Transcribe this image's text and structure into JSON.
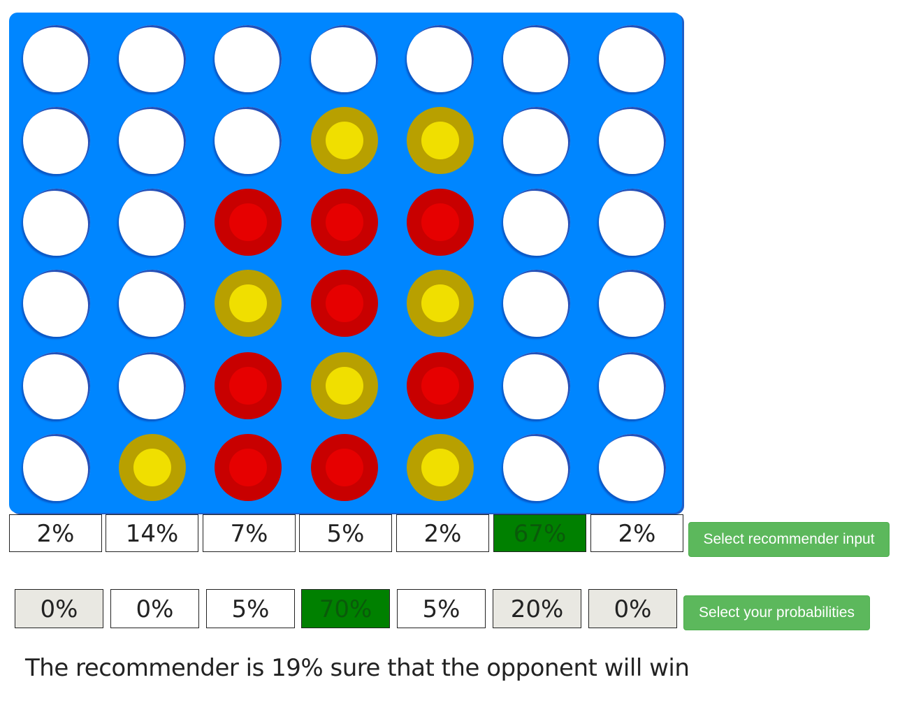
{
  "board": {
    "columns": 7,
    "rows": 6,
    "grid": [
      [
        "empty",
        "empty",
        "empty",
        "empty",
        "empty",
        "empty",
        "empty"
      ],
      [
        "empty",
        "empty",
        "empty",
        "yellow",
        "yellow",
        "empty",
        "empty"
      ],
      [
        "empty",
        "empty",
        "red",
        "red",
        "red",
        "empty",
        "empty"
      ],
      [
        "empty",
        "empty",
        "yellow",
        "red",
        "yellow",
        "empty",
        "empty"
      ],
      [
        "empty",
        "empty",
        "red",
        "yellow",
        "red",
        "empty",
        "empty"
      ],
      [
        "empty",
        "yellow",
        "red",
        "red",
        "yellow",
        "empty",
        "empty"
      ]
    ],
    "colors": {
      "board": "#0086ff",
      "red_outer": "#c80000",
      "red_inner": "#e60000",
      "yellow_outer": "#b8a000",
      "yellow_inner": "#f0df00",
      "highlight": "#008000",
      "button": "#5cb85c"
    }
  },
  "recommender": {
    "values": [
      "2%",
      "14%",
      "7%",
      "5%",
      "2%",
      "67%",
      "2%"
    ],
    "highlight_index": 5,
    "button_label": "Select recommender input"
  },
  "user": {
    "values": [
      "0%",
      "0%",
      "5%",
      "70%",
      "5%",
      "20%",
      "0%"
    ],
    "highlight_index": 3,
    "grey_indices": [
      0,
      5,
      6
    ],
    "button_label": "Select your probabilities"
  },
  "status_text": "The recommender is 19% sure that the opponent will win"
}
